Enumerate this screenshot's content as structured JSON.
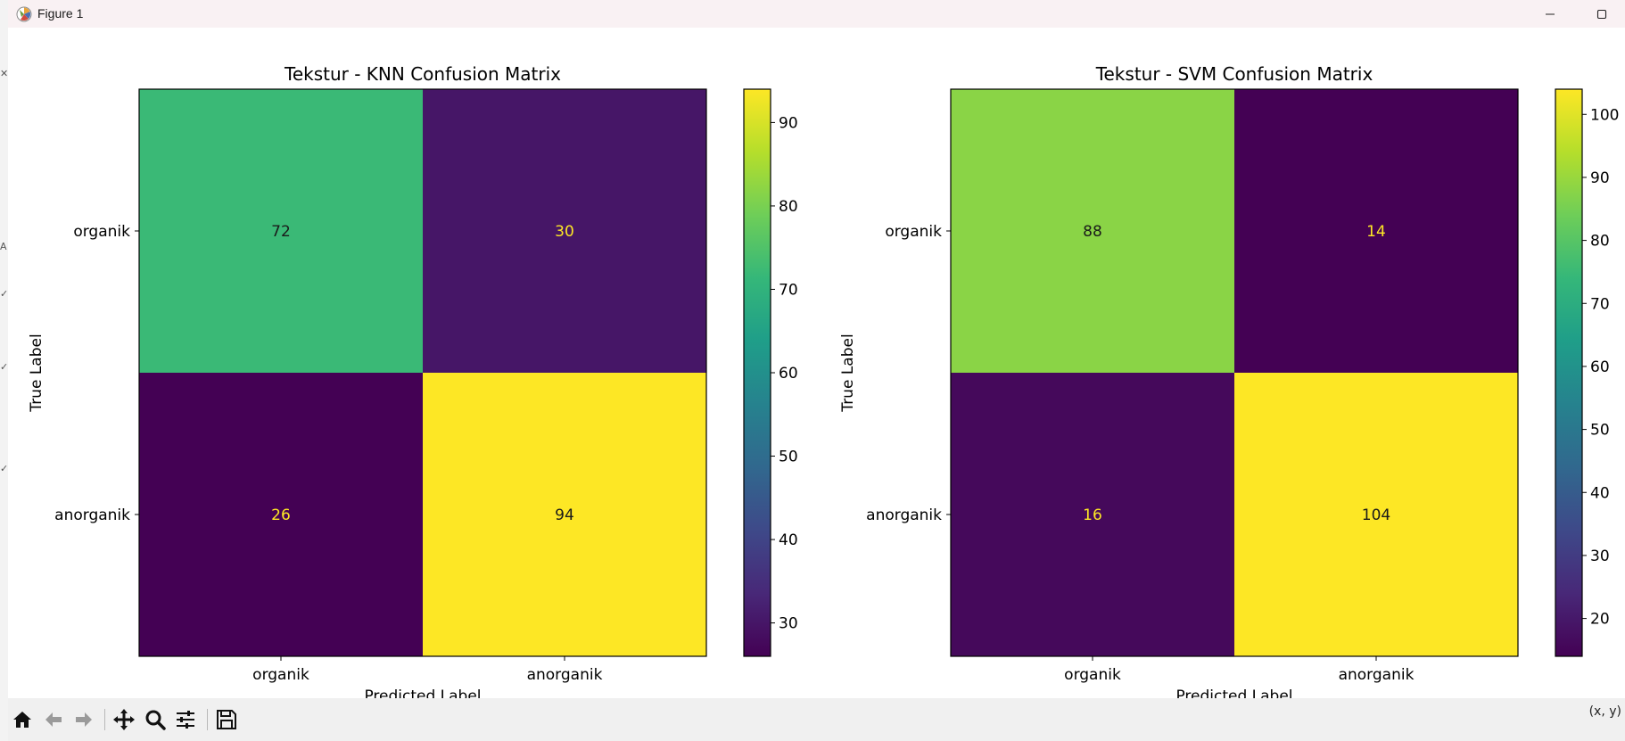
{
  "window": {
    "title": "Figure 1",
    "minimize_icon": "minimize-icon",
    "maximize_icon": "maximize-icon"
  },
  "toolbar": {
    "tools": [
      "home-icon",
      "back-arrow-icon",
      "forward-arrow-icon",
      "pan-icon",
      "zoom-icon",
      "configure-subplots-icon",
      "save-icon"
    ],
    "coords_label": "(x, y)"
  },
  "colors": {
    "titlebar_bg": "#f9f1f3",
    "toolbar_bg": "#f0f0f0",
    "annotation_light_cell": "#1a1a1a",
    "annotation_dark_cell": "#fde725"
  },
  "chart_data": [
    {
      "type": "heatmap",
      "title": "Tekstur - KNN Confusion Matrix",
      "xlabel": "Predicted Label",
      "ylabel": "True Label",
      "x_categories": [
        "organik",
        "anorganik"
      ],
      "y_categories": [
        "organik",
        "anorganik"
      ],
      "values": [
        [
          72,
          30
        ],
        [
          26,
          94
        ]
      ],
      "colormap": "viridis",
      "vmin": 26,
      "vmax": 94,
      "colorbar_ticks": [
        30,
        40,
        50,
        60,
        70,
        80,
        90
      ]
    },
    {
      "type": "heatmap",
      "title": "Tekstur - SVM Confusion Matrix",
      "xlabel": "Predicted Label",
      "ylabel": "True Label",
      "x_categories": [
        "organik",
        "anorganik"
      ],
      "y_categories": [
        "organik",
        "anorganik"
      ],
      "values": [
        [
          88,
          14
        ],
        [
          16,
          104
        ]
      ],
      "colormap": "viridis",
      "vmin": 14,
      "vmax": 104,
      "colorbar_ticks": [
        20,
        30,
        40,
        50,
        60,
        70,
        80,
        90,
        100
      ]
    }
  ]
}
